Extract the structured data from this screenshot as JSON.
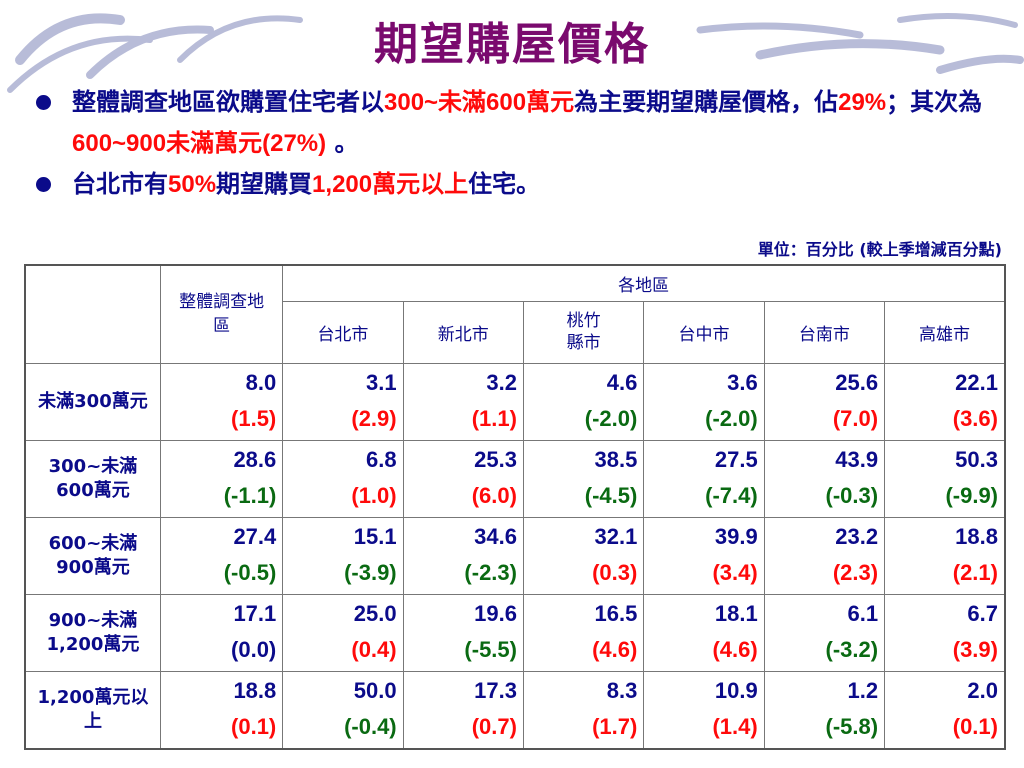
{
  "title": "期望購屋價格",
  "bullets": [
    {
      "parts": [
        {
          "t": "整體調查地區欲購置住宅者以",
          "red": false
        },
        {
          "t": "300~未滿600萬元",
          "red": true
        },
        {
          "t": "為主要期望購屋價格，佔",
          "red": false
        },
        {
          "t": "29%",
          "red": true
        },
        {
          "t": "；其次為",
          "red": false
        },
        {
          "t": "600~900未滿萬元(27%)",
          "red": true
        },
        {
          "t": " 。",
          "red": false
        }
      ]
    },
    {
      "parts": [
        {
          "t": "台北市有",
          "red": false
        },
        {
          "t": "50%",
          "red": true
        },
        {
          "t": "期望購買",
          "red": false
        },
        {
          "t": "1,200萬元以上",
          "red": true
        },
        {
          "t": "住宅。",
          "red": false
        }
      ]
    }
  ],
  "unit_note": "單位：百分比 (較上季增減百分點)",
  "table": {
    "overall_header": "整體調查地區",
    "region_group_header": "各地區",
    "region_headers": [
      "台北市",
      "新北市",
      "桃竹縣市",
      "台中市",
      "台南市",
      "高雄市"
    ],
    "rows": [
      {
        "label": "未滿300萬元",
        "values": [
          "8.0",
          "3.1",
          "3.2",
          "4.6",
          "3.6",
          "25.6",
          "22.1"
        ],
        "changes": [
          "(1.5)",
          "(2.9)",
          "(1.1)",
          "(-2.0)",
          "(-2.0)",
          "(7.0)",
          "(3.6)"
        ]
      },
      {
        "label": "300~未滿600萬元",
        "values": [
          "28.6",
          "6.8",
          "25.3",
          "38.5",
          "27.5",
          "43.9",
          "50.3"
        ],
        "changes": [
          "(-1.1)",
          "(1.0)",
          "(6.0)",
          "(-4.5)",
          "(-7.4)",
          "(-0.3)",
          "(-9.9)"
        ]
      },
      {
        "label": "600~未滿900萬元",
        "values": [
          "27.4",
          "15.1",
          "34.6",
          "32.1",
          "39.9",
          "23.2",
          "18.8"
        ],
        "changes": [
          "(-0.5)",
          "(-3.9)",
          "(-2.3)",
          "(0.3)",
          "(3.4)",
          "(2.3)",
          "(2.1)"
        ]
      },
      {
        "label": "900~未滿1,200萬元",
        "values": [
          "17.1",
          "25.0",
          "19.6",
          "16.5",
          "18.1",
          "6.1",
          "6.7"
        ],
        "changes": [
          "(0.0)",
          "(0.4)",
          "(-5.5)",
          "(4.6)",
          "(4.6)",
          "(-3.2)",
          "(3.9)"
        ]
      },
      {
        "label": "1,200萬元以上",
        "values": [
          "18.8",
          "50.0",
          "17.3",
          "8.3",
          "10.9",
          "1.2",
          "2.0"
        ],
        "changes": [
          "(0.1)",
          "(-0.4)",
          "(0.7)",
          "(1.7)",
          "(1.4)",
          "(-5.8)",
          "(0.1)"
        ]
      }
    ]
  },
  "colors": {
    "title": "#7a0a6e",
    "text": "#0b0b8a",
    "increase": "#ff0a0a",
    "decrease": "#0a6a12"
  }
}
